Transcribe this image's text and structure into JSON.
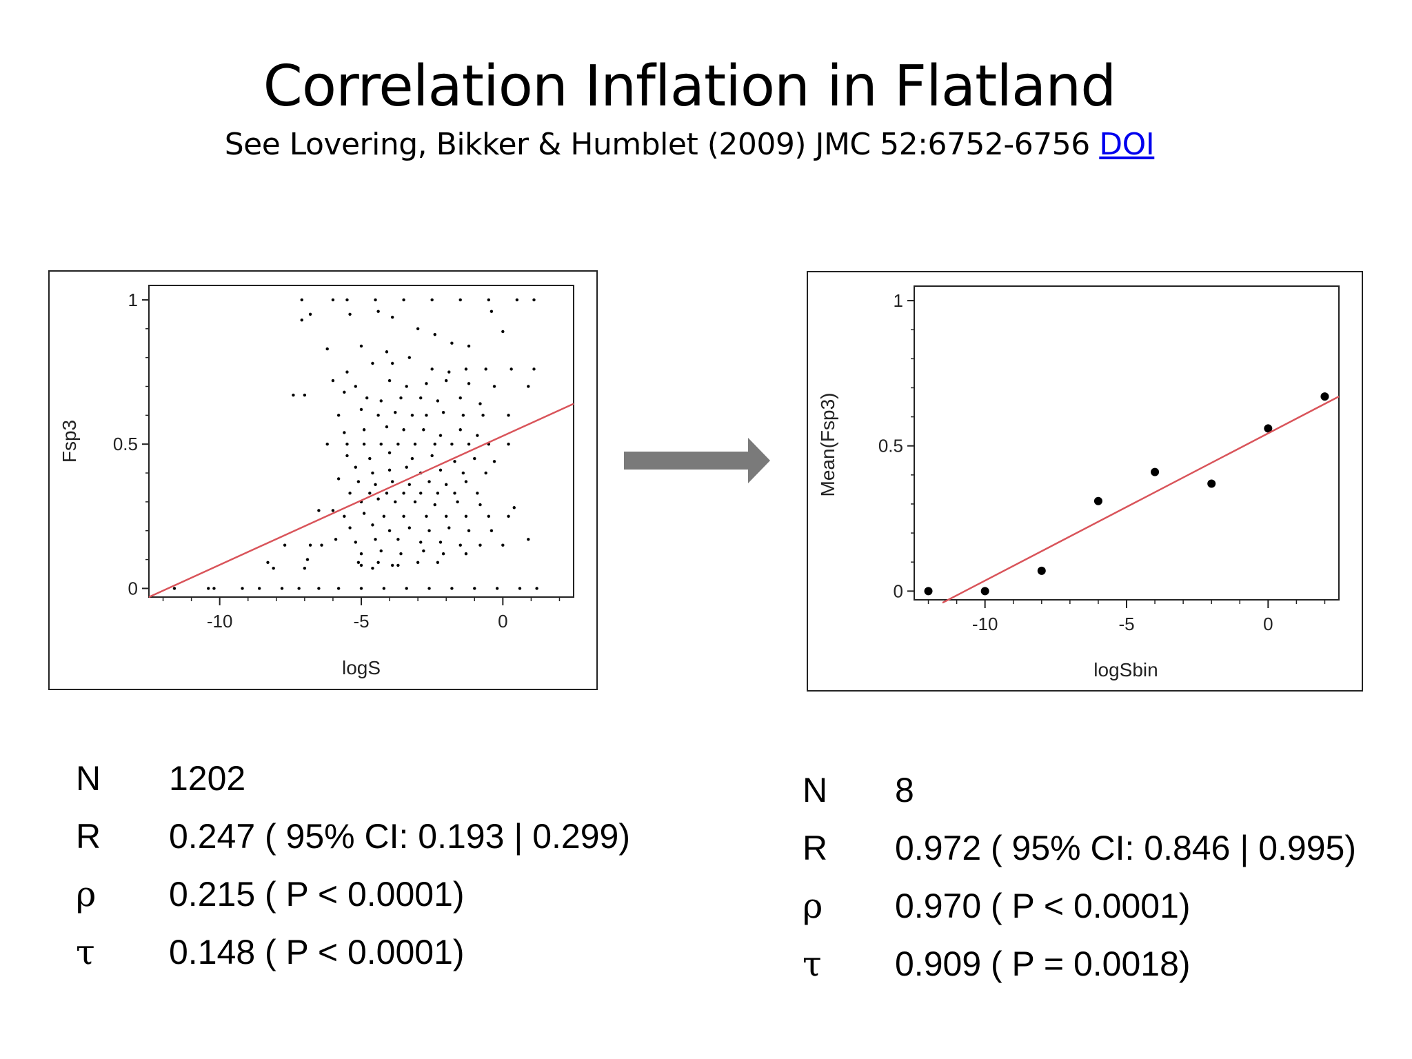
{
  "slide": {
    "title": "Correlation Inflation in Flatland",
    "subtitle": "See Lovering, Bikker & Humblet (2009) JMC 52:6752-6756",
    "link_text": "DOI"
  },
  "colors": {
    "regression_line": "#d9545a",
    "points": "#000000",
    "arrow": "#7a7a7a"
  },
  "chart_data": [
    {
      "type": "scatter",
      "xlabel": "logS",
      "ylabel": "Fsp3",
      "xlim": [
        -12.5,
        2.5
      ],
      "ylim": [
        -0.03,
        1.05
      ],
      "xticks": [
        -10,
        -5,
        0
      ],
      "yticks": [
        0,
        0.5,
        1
      ],
      "xtick_labels": [
        "-10",
        "-5",
        "0"
      ],
      "ytick_labels": [
        "0",
        "0.5",
        "1"
      ],
      "grid": false,
      "n_points": 1202,
      "fit_line": {
        "x": [
          -12.5,
          2.5
        ],
        "y": [
          -0.03,
          0.64
        ]
      },
      "points": [
        [
          -11.6,
          0
        ],
        [
          -10.4,
          0
        ],
        [
          -10.2,
          0
        ],
        [
          -9.2,
          0
        ],
        [
          -8.6,
          0
        ],
        [
          -7.8,
          0
        ],
        [
          -7.2,
          0
        ],
        [
          -6.5,
          0
        ],
        [
          -5.8,
          0
        ],
        [
          -5.0,
          0
        ],
        [
          -4.2,
          0
        ],
        [
          -3.4,
          0
        ],
        [
          -2.6,
          0
        ],
        [
          -1.8,
          0
        ],
        [
          -1.0,
          0
        ],
        [
          -0.2,
          0
        ],
        [
          0.6,
          0
        ],
        [
          1.2,
          0
        ],
        [
          -7.1,
          1
        ],
        [
          -6.0,
          1
        ],
        [
          -5.5,
          1
        ],
        [
          -4.5,
          1
        ],
        [
          -3.5,
          1
        ],
        [
          -2.5,
          1
        ],
        [
          -1.5,
          1
        ],
        [
          -0.5,
          1
        ],
        [
          0.5,
          1
        ],
        [
          1.1,
          1
        ],
        [
          -7.1,
          0.93
        ],
        [
          -6.8,
          0.95
        ],
        [
          -5.4,
          0.95
        ],
        [
          -4.4,
          0.96
        ],
        [
          -3.9,
          0.94
        ],
        [
          -3.0,
          0.9
        ],
        [
          -2.4,
          0.88
        ],
        [
          -1.8,
          0.85
        ],
        [
          -1.2,
          0.84
        ],
        [
          -0.4,
          0.96
        ],
        [
          0.0,
          0.89
        ],
        [
          -6.2,
          0.83
        ],
        [
          -5.0,
          0.84
        ],
        [
          -4.1,
          0.82
        ],
        [
          -3.3,
          0.8
        ],
        [
          -1.3,
          0.76
        ],
        [
          -0.6,
          0.76
        ],
        [
          0.3,
          0.76
        ],
        [
          1.1,
          0.76
        ],
        [
          -5.5,
          0.75
        ],
        [
          -4.6,
          0.78
        ],
        [
          -3.9,
          0.78
        ],
        [
          -2.5,
          0.76
        ],
        [
          -1.9,
          0.75
        ],
        [
          -6.0,
          0.72
        ],
        [
          -5.2,
          0.7
        ],
        [
          -4.0,
          0.72
        ],
        [
          -3.4,
          0.7
        ],
        [
          -2.7,
          0.71
        ],
        [
          -2.0,
          0.72
        ],
        [
          -1.2,
          0.71
        ],
        [
          -0.3,
          0.7
        ],
        [
          0.9,
          0.7
        ],
        [
          -7.4,
          0.67
        ],
        [
          -7.0,
          0.67
        ],
        [
          -5.6,
          0.68
        ],
        [
          -4.8,
          0.66
        ],
        [
          -4.3,
          0.65
        ],
        [
          -3.6,
          0.66
        ],
        [
          -2.9,
          0.66
        ],
        [
          -2.3,
          0.65
        ],
        [
          -1.5,
          0.66
        ],
        [
          -0.8,
          0.64
        ],
        [
          -5.8,
          0.6
        ],
        [
          -5.0,
          0.62
        ],
        [
          -4.4,
          0.6
        ],
        [
          -3.8,
          0.61
        ],
        [
          -3.2,
          0.6
        ],
        [
          -2.7,
          0.6
        ],
        [
          -2.1,
          0.61
        ],
        [
          -1.4,
          0.6
        ],
        [
          -0.7,
          0.6
        ],
        [
          0.2,
          0.6
        ],
        [
          -5.6,
          0.54
        ],
        [
          -4.9,
          0.55
        ],
        [
          -4.1,
          0.56
        ],
        [
          -3.5,
          0.55
        ],
        [
          -2.8,
          0.55
        ],
        [
          -2.2,
          0.53
        ],
        [
          -1.5,
          0.55
        ],
        [
          -0.9,
          0.53
        ],
        [
          -6.2,
          0.5
        ],
        [
          -5.5,
          0.5
        ],
        [
          -4.9,
          0.5
        ],
        [
          -4.3,
          0.5
        ],
        [
          -3.7,
          0.5
        ],
        [
          -3.1,
          0.5
        ],
        [
          -2.4,
          0.5
        ],
        [
          -1.8,
          0.5
        ],
        [
          -1.2,
          0.5
        ],
        [
          -0.5,
          0.5
        ],
        [
          0.2,
          0.5
        ],
        [
          -5.5,
          0.46
        ],
        [
          -4.7,
          0.45
        ],
        [
          -4.0,
          0.47
        ],
        [
          -3.2,
          0.45
        ],
        [
          -2.5,
          0.46
        ],
        [
          -1.7,
          0.44
        ],
        [
          -1.0,
          0.45
        ],
        [
          -0.3,
          0.44
        ],
        [
          -5.2,
          0.42
        ],
        [
          -4.6,
          0.4
        ],
        [
          -4.0,
          0.41
        ],
        [
          -3.4,
          0.42
        ],
        [
          -2.9,
          0.4
        ],
        [
          -2.2,
          0.41
        ],
        [
          -1.4,
          0.4
        ],
        [
          -0.6,
          0.4
        ],
        [
          -5.8,
          0.38
        ],
        [
          -5.1,
          0.37
        ],
        [
          -4.5,
          0.36
        ],
        [
          -3.9,
          0.37
        ],
        [
          -3.3,
          0.36
        ],
        [
          -2.6,
          0.37
        ],
        [
          -2.0,
          0.36
        ],
        [
          -1.3,
          0.37
        ],
        [
          -5.4,
          0.33
        ],
        [
          -4.7,
          0.33
        ],
        [
          -4.1,
          0.33
        ],
        [
          -3.5,
          0.33
        ],
        [
          -2.9,
          0.33
        ],
        [
          -2.3,
          0.33
        ],
        [
          -1.7,
          0.33
        ],
        [
          -0.9,
          0.33
        ],
        [
          -5.0,
          0.3
        ],
        [
          -4.4,
          0.31
        ],
        [
          -3.8,
          0.3
        ],
        [
          -3.1,
          0.3
        ],
        [
          -2.4,
          0.29
        ],
        [
          -1.6,
          0.3
        ],
        [
          -0.8,
          0.29
        ],
        [
          -6.5,
          0.27
        ],
        [
          -6.0,
          0.27
        ],
        [
          -5.6,
          0.25
        ],
        [
          -4.9,
          0.26
        ],
        [
          -4.2,
          0.25
        ],
        [
          -3.5,
          0.25
        ],
        [
          -2.7,
          0.25
        ],
        [
          -2.0,
          0.25
        ],
        [
          -1.3,
          0.25
        ],
        [
          -0.5,
          0.25
        ],
        [
          0.2,
          0.25
        ],
        [
          0.4,
          0.28
        ],
        [
          -5.4,
          0.21
        ],
        [
          -4.6,
          0.22
        ],
        [
          -4.0,
          0.2
        ],
        [
          -3.3,
          0.21
        ],
        [
          -2.6,
          0.2
        ],
        [
          -1.9,
          0.21
        ],
        [
          -1.2,
          0.2
        ],
        [
          -0.4,
          0.2
        ],
        [
          -5.9,
          0.17
        ],
        [
          -5.2,
          0.16
        ],
        [
          -4.5,
          0.17
        ],
        [
          -3.7,
          0.17
        ],
        [
          -2.9,
          0.16
        ],
        [
          -2.2,
          0.16
        ],
        [
          -1.5,
          0.15
        ],
        [
          -0.8,
          0.15
        ],
        [
          0.0,
          0.15
        ],
        [
          0.9,
          0.17
        ],
        [
          -7.7,
          0.15
        ],
        [
          -6.8,
          0.15
        ],
        [
          -6.4,
          0.15
        ],
        [
          -5.0,
          0.12
        ],
        [
          -4.3,
          0.13
        ],
        [
          -3.6,
          0.12
        ],
        [
          -2.8,
          0.13
        ],
        [
          -2.1,
          0.12
        ],
        [
          -1.3,
          0.12
        ],
        [
          -6.9,
          0.1
        ],
        [
          -5.1,
          0.09
        ],
        [
          -4.4,
          0.09
        ],
        [
          -3.7,
          0.08
        ],
        [
          -3.0,
          0.09
        ],
        [
          -2.3,
          0.09
        ],
        [
          -8.3,
          0.09
        ],
        [
          -8.1,
          0.07
        ],
        [
          -7.0,
          0.07
        ],
        [
          -4.6,
          0.07
        ],
        [
          -3.9,
          0.08
        ],
        [
          -5.0,
          0.08
        ]
      ]
    },
    {
      "type": "scatter",
      "xlabel": "logSbin",
      "ylabel": "Mean(Fsp3)",
      "xlim": [
        -12.5,
        2.5
      ],
      "ylim": [
        -0.03,
        1.05
      ],
      "xticks": [
        -10,
        -5,
        0
      ],
      "yticks": [
        0,
        0.5,
        1
      ],
      "xtick_labels": [
        "-10",
        "-5",
        "0"
      ],
      "ytick_labels": [
        "0",
        "0.5",
        "1"
      ],
      "grid": false,
      "n_points": 8,
      "fit_line": {
        "x": [
          -11.5,
          2.5
        ],
        "y": [
          -0.04,
          0.67
        ]
      },
      "points": [
        [
          -12,
          0
        ],
        [
          -10,
          0
        ],
        [
          -8,
          0.07
        ],
        [
          -6,
          0.31
        ],
        [
          -4,
          0.41
        ],
        [
          -2,
          0.37
        ],
        [
          0,
          0.56
        ],
        [
          2,
          0.67
        ]
      ]
    }
  ],
  "stats": {
    "left": [
      {
        "label": "N",
        "value": "1202"
      },
      {
        "label": "R",
        "value": "0.247 ( 95% CI: 0.193 | 0.299)"
      },
      {
        "label": "ρ",
        "value": "0.215 ( P < 0.0001)"
      },
      {
        "label": "τ",
        "value": "0.148 ( P < 0.0001)"
      }
    ],
    "right": [
      {
        "label": "N",
        "value": "8"
      },
      {
        "label": "R",
        "value": "0.972 ( 95% CI: 0.846 | 0.995)"
      },
      {
        "label": "ρ",
        "value": "0.970 ( P < 0.0001)"
      },
      {
        "label": "τ",
        "value": "0.909 ( P = 0.0018)"
      }
    ]
  }
}
